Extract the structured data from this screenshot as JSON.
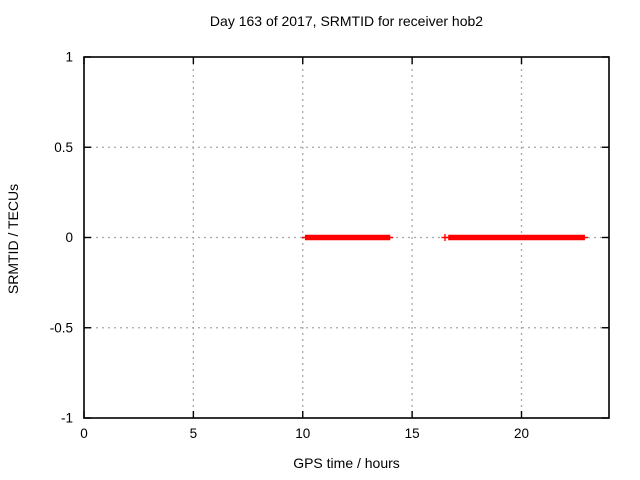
{
  "chart_data": {
    "type": "line",
    "title": "Day 163 of 2017, SRMTID for receiver hob2",
    "xlabel": "GPS time / hours",
    "ylabel": "SRMTID / TECUs",
    "xlim": [
      0,
      24
    ],
    "ylim": [
      -1,
      1
    ],
    "xticks": [
      0,
      5,
      10,
      15,
      20
    ],
    "yticks": [
      -1,
      -0.5,
      0,
      0.5,
      1
    ],
    "grid": true,
    "legend_position": "none",
    "series": [
      {
        "name": "SRMTID",
        "color": "#ff0000",
        "marker": "plus",
        "y_value": 0,
        "segments": [
          {
            "x_start": 10.1,
            "x_end": 14.0
          },
          {
            "x_start": 16.65,
            "x_end": 22.9
          }
        ],
        "isolated_points": [
          {
            "x": 16.5,
            "y": 0
          }
        ]
      }
    ],
    "colors": {
      "background": "#ffffff",
      "axis": "#000000",
      "grid": "#a8a8a8",
      "text": "#000000",
      "data": "#ff0000"
    }
  }
}
